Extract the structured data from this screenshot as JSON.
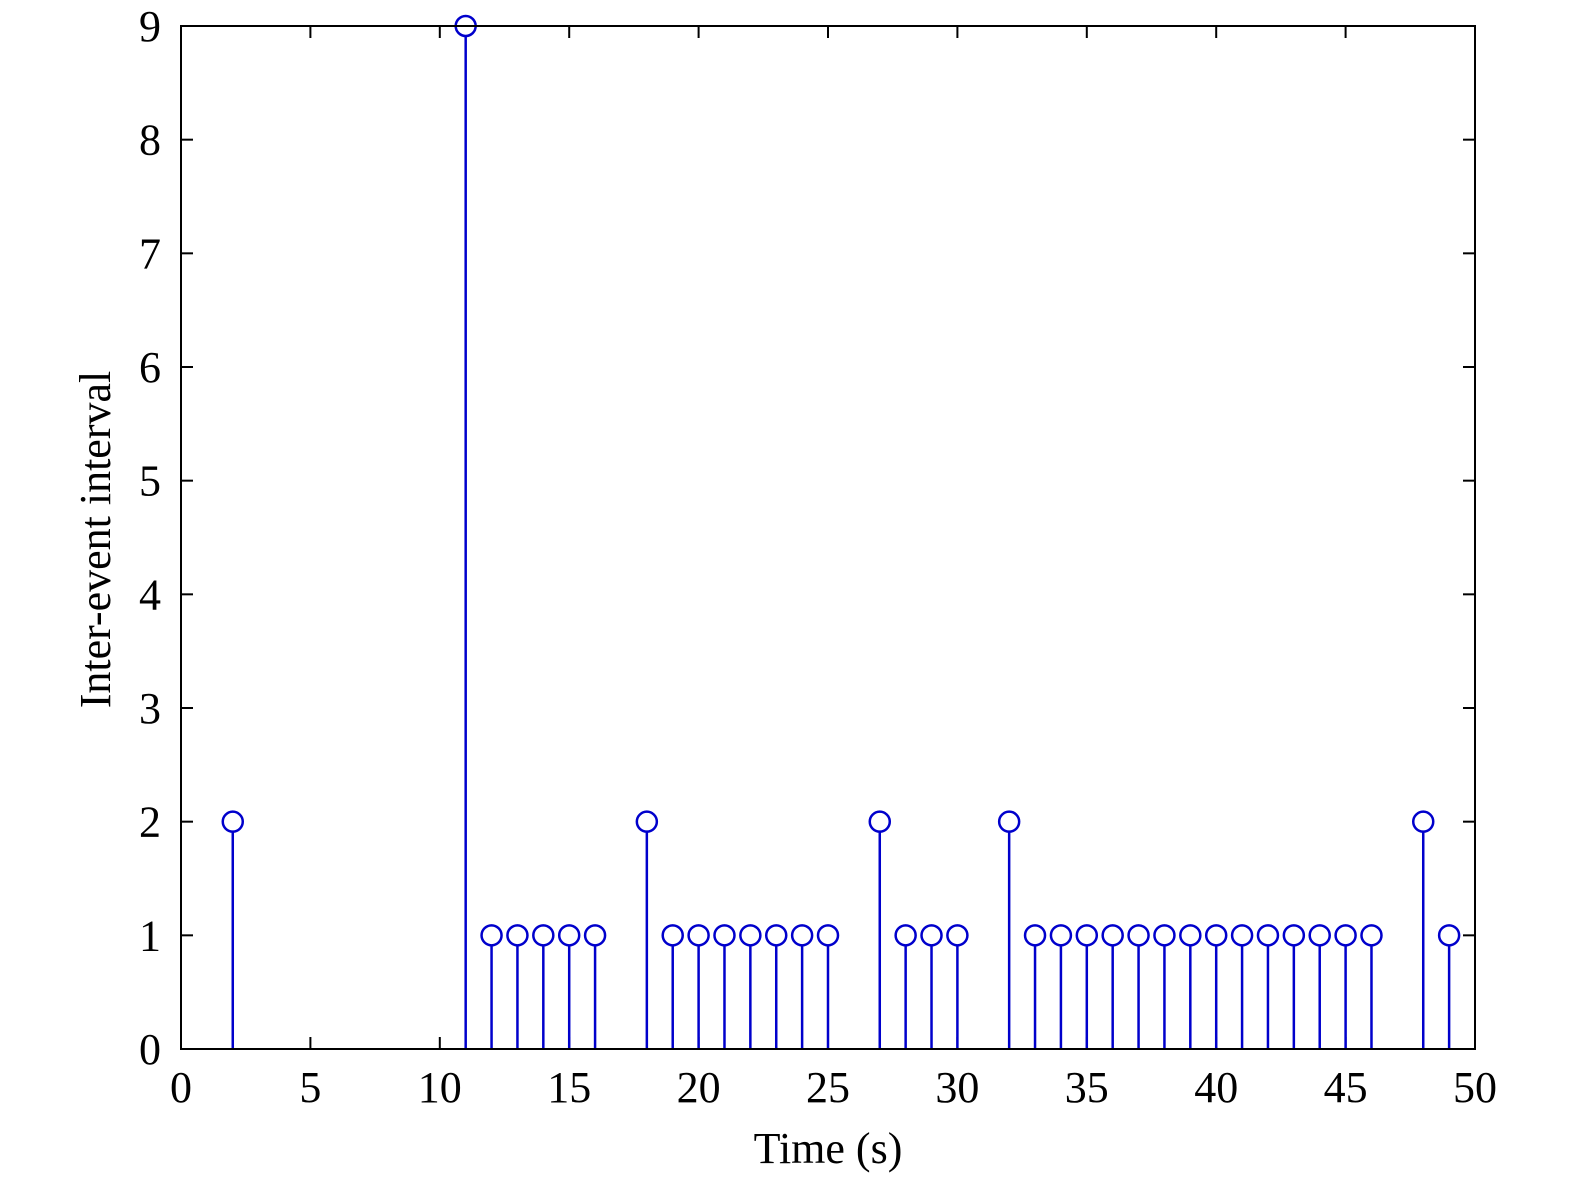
{
  "chart_data": {
    "type": "scatter",
    "style": "stem",
    "title": "",
    "xlabel": "Time (s)",
    "ylabel": "Inter-event interval",
    "xlim": [
      0,
      50
    ],
    "ylim": [
      0,
      9
    ],
    "xticks": [
      0,
      5,
      10,
      15,
      20,
      25,
      30,
      35,
      40,
      45,
      50
    ],
    "yticks": [
      0,
      1,
      2,
      3,
      4,
      5,
      6,
      7,
      8,
      9
    ],
    "grid": false,
    "legend": "none",
    "color": "#0000cc",
    "marker": "open-circle",
    "x": [
      2,
      11,
      12,
      13,
      14,
      15,
      16,
      18,
      19,
      20,
      21,
      22,
      23,
      24,
      25,
      27,
      28,
      29,
      30,
      32,
      33,
      34,
      35,
      36,
      37,
      38,
      39,
      40,
      41,
      42,
      43,
      44,
      45,
      46,
      48,
      49
    ],
    "y": [
      2,
      9,
      1,
      1,
      1,
      1,
      1,
      2,
      1,
      1,
      1,
      1,
      1,
      1,
      1,
      2,
      1,
      1,
      1,
      2,
      1,
      1,
      1,
      1,
      1,
      1,
      1,
      1,
      1,
      1,
      1,
      1,
      1,
      1,
      2,
      1
    ]
  }
}
